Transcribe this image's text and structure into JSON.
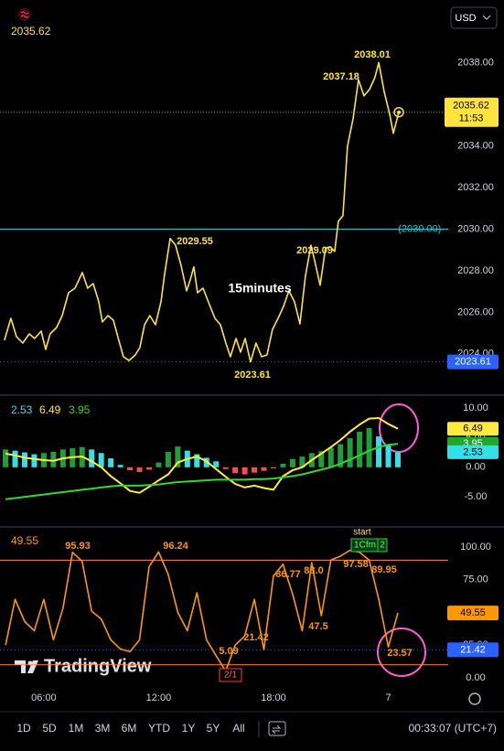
{
  "chart_data": [
    {
      "type": "line",
      "last_value": 2035.62,
      "currency": "USD",
      "color": "#ffe43d",
      "x": [
        3.94,
        4.28,
        4.57,
        4.9,
        5.24,
        5.52,
        5.86,
        6.1,
        6.33,
        6.67,
        6.96,
        7.29,
        7.63,
        8.01,
        8.29,
        8.58,
        8.87,
        9.06,
        9.35,
        9.63,
        9.92,
        10.16,
        10.45,
        10.78,
        11.02,
        11.26,
        11.54,
        11.83,
        12.12,
        12.31,
        12.6,
        12.88,
        13.17,
        13.46,
        13.65,
        13.84,
        14.03,
        14.32,
        14.6,
        14.94,
        15.23,
        15.51,
        15.75,
        16.04,
        16.28,
        16.52,
        16.8,
        17.09,
        17.38,
        17.66,
        17.95,
        18.24,
        18.52,
        18.81,
        19.1,
        19.38,
        19.67,
        19.96,
        20.15,
        20.44,
        20.72,
        20.96,
        21.2,
        21.39,
        21.63,
        21.87,
        22.16,
        22.44,
        22.73,
        23.02,
        23.3,
        23.5,
        23.78,
        24.07,
        24.26,
        24.55
      ],
      "values": [
        2024.65,
        2025.71,
        2024.83,
        2024.52,
        2024.96,
        2024.74,
        2025.09,
        2024.21,
        2024.96,
        2025.27,
        2025.84,
        2026.94,
        2027.16,
        2027.91,
        2027.16,
        2027.38,
        2026.5,
        2025.53,
        2025.84,
        2025.62,
        2024.65,
        2023.86,
        2023.68,
        2023.95,
        2024.3,
        2025.4,
        2025.84,
        2025.4,
        2026.5,
        2027.82,
        2029.55,
        2029.23,
        2028.26,
        2027.03,
        2027.56,
        2028.18,
        2026.94,
        2027.16,
        2026.5,
        2025.71,
        2025.4,
        2024.52,
        2023.86,
        2024.74,
        2024.08,
        2024.74,
        2023.61,
        2024.52,
        2023.86,
        2023.95,
        2025.18,
        2025.71,
        2026.28,
        2027.03,
        2026.5,
        2025.44,
        2027.74,
        2029.23,
        2028.48,
        2027.3,
        2029.09,
        2029.15,
        2028.93,
        2030.38,
        2030.64,
        2033.99,
        2035.31,
        2037.18,
        2036.41,
        2036.72,
        2037.3,
        2038.01,
        2036.63,
        2035.53,
        2034.61,
        2035.62
      ],
      "xlim": [
        3.71,
        27.13
      ],
      "ylim": [
        2022.1,
        2040.8
      ],
      "yticks": [
        {
          "value": 2024,
          "label": "2024.00"
        },
        {
          "value": 2026,
          "label": "2026.00"
        },
        {
          "value": 2028,
          "label": "2028.00"
        },
        {
          "value": 2030,
          "label": "2030.00"
        },
        {
          "value": 2032,
          "label": "2032.00"
        },
        {
          "value": 2034,
          "label": "2034.00"
        },
        {
          "value": 2036,
          "label": "2036.00"
        },
        {
          "value": 2038,
          "label": "2038.00"
        }
      ],
      "hline": {
        "value": 2030,
        "label": "(2030.00) -",
        "color": "#26c6da"
      },
      "price_tag": {
        "value": 2035.62,
        "time": "11:53"
      },
      "low_line": {
        "value": 2023.61,
        "color": "#2962ff"
      },
      "annotations": [
        2038.01,
        2037.18,
        2029.55,
        2029.09,
        2023.61
      ],
      "note": "15minutes"
    },
    {
      "type": "macd",
      "xlim": [
        3.71,
        27.13
      ],
      "ylim": [
        -9.9,
        12
      ],
      "x": [
        4.0,
        4.5,
        5.0,
        5.5,
        6.0,
        6.5,
        7.0,
        7.5,
        8.0,
        8.5,
        9.0,
        9.5,
        10.0,
        10.5,
        11.0,
        11.5,
        12.0,
        12.5,
        13.0,
        13.5,
        14.0,
        14.5,
        15.0,
        15.5,
        16.0,
        16.5,
        17.0,
        17.5,
        18.0,
        18.5,
        19.0,
        19.5,
        20.0,
        20.5,
        21.0,
        21.5,
        22.0,
        22.5,
        23.0,
        23.5,
        24.0,
        24.5
      ],
      "yticks": [
        {
          "value": 10,
          "label": "10.00"
        },
        {
          "value": 5,
          "label": "5.00"
        },
        {
          "value": 0,
          "label": "0.00"
        },
        {
          "value": -5,
          "label": "-5.00"
        }
      ],
      "histogram": {
        "last": 2.53,
        "colors": {
          "rising": "#1f9e3a",
          "falling": "#33e0e8",
          "negative": "#ff4a4a"
        },
        "values": [
          3.0,
          2.8,
          2.5,
          2.2,
          2.4,
          2.6,
          3.0,
          3.2,
          3.4,
          3.0,
          2.4,
          1.5,
          0.4,
          -0.5,
          -0.8,
          -0.4,
          0.8,
          2.6,
          3.5,
          2.8,
          2.2,
          1.6,
          1.0,
          -0.3,
          -1.0,
          -1.2,
          -0.9,
          -0.6,
          -0.2,
          0.6,
          1.4,
          1.8,
          2.4,
          2.7,
          3.3,
          3.9,
          4.9,
          6.0,
          6.6,
          5.2,
          3.8,
          2.53
        ]
      },
      "lines": [
        {
          "color": "#ffeb3b",
          "last": 6.49,
          "values": [
            2.3,
            2.0,
            1.6,
            1.4,
            1.2,
            1.1,
            1.5,
            1.7,
            1.8,
            1.0,
            0,
            -1.5,
            -2.7,
            -4.0,
            -4.3,
            -3.3,
            -2.2,
            -1.2,
            0.8,
            1.4,
            1.8,
            1.0,
            -0.3,
            -1.6,
            -2.8,
            -3.4,
            -3.1,
            -3.5,
            -3.8,
            -1.5,
            -0.5,
            0,
            1.2,
            2.3,
            3.4,
            4.6,
            6.0,
            7.2,
            8.2,
            8.3,
            7.3,
            6.49
          ]
        },
        {
          "color": "#33d633",
          "last": 3.95,
          "values": [
            -5.4,
            -5.2,
            -5.0,
            -4.8,
            -4.6,
            -4.4,
            -4.2,
            -4.0,
            -3.8,
            -3.6,
            -3.4,
            -3.2,
            -3.1,
            -3.1,
            -3.1,
            -3.0,
            -2.9,
            -2.7,
            -2.5,
            -2.4,
            -2.3,
            -2.2,
            -2.1,
            -2.1,
            -2.1,
            -2.1,
            -2.0,
            -2.0,
            -1.9,
            -1.7,
            -1.5,
            -1.2,
            -0.8,
            -0.4,
            0,
            0.6,
            1.3,
            2.0,
            2.8,
            3.4,
            3.8,
            3.95
          ]
        }
      ]
    },
    {
      "type": "line",
      "color": "#ff9800",
      "last_value": 49.55,
      "xlim": [
        3.71,
        27.13
      ],
      "ylim": [
        -4.9,
        114.7
      ],
      "x": [
        4.0,
        4.5,
        5.0,
        5.5,
        6.0,
        6.5,
        7.0,
        7.5,
        8.0,
        8.5,
        9.0,
        9.5,
        10.0,
        10.5,
        11.0,
        11.5,
        12.0,
        12.5,
        13.0,
        13.5,
        14.0,
        14.5,
        15.0,
        15.5,
        16.0,
        16.5,
        17.0,
        17.5,
        18.0,
        18.5,
        19.0,
        19.5,
        20.0,
        20.5,
        21.0,
        21.5,
        22.0,
        22.5,
        23.0,
        23.5,
        24.0,
        24.5
      ],
      "values": [
        25,
        60,
        43,
        36,
        60,
        29,
        53,
        95.93,
        89,
        51,
        45,
        29,
        22,
        20,
        29,
        85,
        96.24,
        79,
        50,
        36,
        65,
        29,
        17,
        5.09,
        25,
        32,
        60,
        21.42,
        78,
        86.77,
        64,
        36,
        88,
        47.5,
        90,
        93,
        97.58,
        96,
        89.95,
        60,
        23.57,
        49.55
      ],
      "yticks": [
        {
          "value": 100,
          "label": "100.00"
        },
        {
          "value": 75,
          "label": "75.00"
        },
        {
          "value": 50,
          "label": "50.00"
        },
        {
          "value": 25,
          "label": "25.00"
        },
        {
          "value": 0,
          "label": "0.00"
        }
      ],
      "xticks": [
        {
          "value": 6,
          "label": "06:00"
        },
        {
          "value": 12,
          "label": "12:00"
        },
        {
          "value": 18,
          "label": "18:00"
        },
        {
          "value": 24,
          "label": "7"
        }
      ],
      "levels": [
        {
          "value": 90,
          "color": "#ff8a50"
        },
        {
          "value": 10,
          "color": "#ff8a50"
        }
      ],
      "low_line": {
        "value": 21.42,
        "color": "#2962ff"
      },
      "annotations": [
        95.93,
        96.24,
        86.77,
        {
          "value": 88,
          "label": "88.0"
        },
        97.58,
        89.95,
        47.5,
        21.42,
        5.09,
        23.57
      ],
      "markers": [
        "start",
        "1Cfm",
        "2",
        "2/1"
      ]
    }
  ],
  "watermark": "TradingView",
  "toolbar": {
    "ranges": [
      "1D",
      "5D",
      "1M",
      "3M",
      "6M",
      "YTD",
      "1Y",
      "5Y",
      "All"
    ],
    "clock": "00:33:07 (UTC+7)"
  }
}
